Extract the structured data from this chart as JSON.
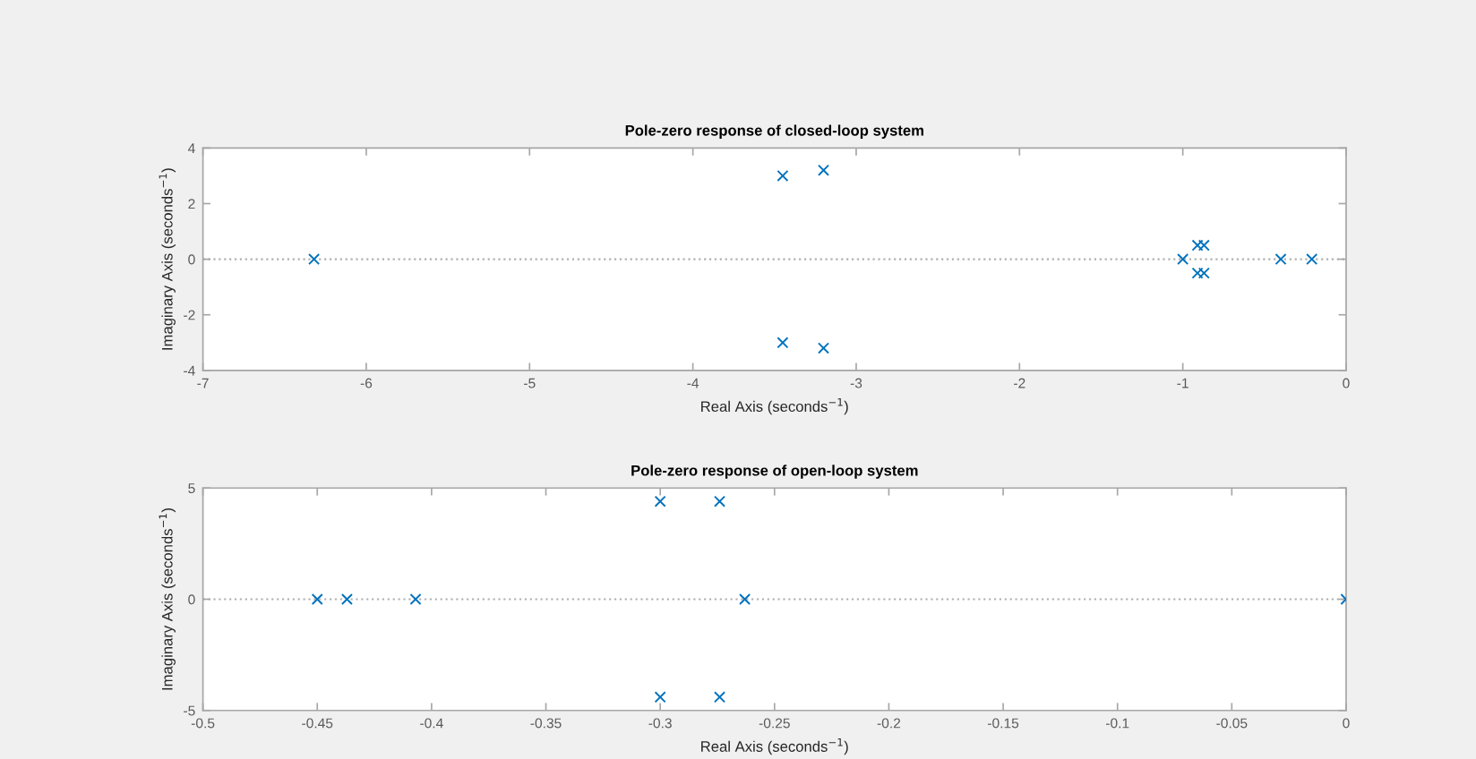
{
  "chart_data": [
    {
      "type": "scatter",
      "title": "Pole-zero response of closed-loop system",
      "xlabel": "Real Axis (seconds$^{−1}$)",
      "ylabel": "Imaginary Axis (seconds$^{−1}$)",
      "color": "#0072bd",
      "marker": "cross",
      "grid": false,
      "x": [
        -6.32,
        -3.45,
        -3.45,
        -3.2,
        -3.2,
        -1.0,
        -0.91,
        -0.91,
        -0.87,
        -0.87,
        -0.4,
        -0.21
      ],
      "values": [
        0,
        3.0,
        -3.0,
        3.2,
        -3.2,
        0,
        0.5,
        -0.5,
        0.5,
        -0.5,
        0,
        0
      ],
      "xlim": [
        -7,
        0
      ],
      "xticks": [
        -7,
        -6,
        -5,
        -4,
        -3,
        -2,
        -1,
        0
      ],
      "ylim": [
        -4,
        4
      ],
      "yticks": [
        -4,
        -2,
        0,
        2,
        4
      ],
      "ref_lines": [
        {
          "axis": "y",
          "value": 0,
          "color": "#b0b0b0",
          "line_style": "dotted"
        }
      ]
    },
    {
      "type": "scatter",
      "title": "Pole-zero response of open-loop system",
      "xlabel": "Real Axis (seconds$^{−1}$)",
      "ylabel": "Imaginary Axis (seconds$^{−1}$)",
      "color": "#0072bd",
      "marker": "cross",
      "grid": false,
      "x": [
        -0.45,
        -0.437,
        -0.407,
        -0.3,
        -0.3,
        -0.274,
        -0.274,
        -0.263,
        0
      ],
      "values": [
        0,
        0,
        0,
        4.4,
        -4.4,
        4.4,
        -4.4,
        0,
        0
      ],
      "xlim": [
        -0.5,
        0
      ],
      "xticks": [
        -0.5,
        -0.45,
        -0.4,
        -0.35,
        -0.3,
        -0.25,
        -0.2,
        -0.15,
        -0.1,
        -0.05,
        0
      ],
      "ylim": [
        -5,
        5
      ],
      "yticks": [
        -5,
        0,
        5
      ],
      "ref_lines": [
        {
          "axis": "y",
          "value": 0,
          "color": "#b0b0b0",
          "line_style": "dotted"
        }
      ]
    }
  ]
}
